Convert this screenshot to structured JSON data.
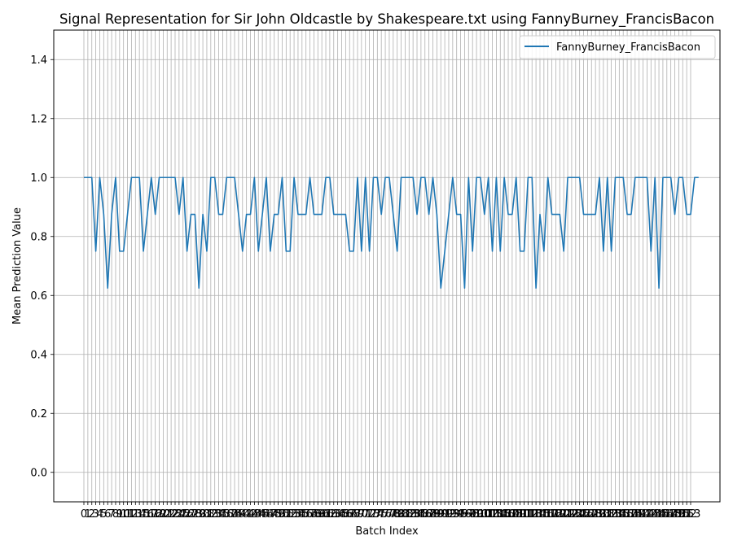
{
  "chart_data": {
    "type": "line",
    "title": "Signal Representation for Sir John Oldcastle by Shakespeare.txt using FannyBurney_FrancisBacon",
    "xlabel": "Batch Index",
    "ylabel": "Mean Prediction Value",
    "ylim": [
      -0.1,
      1.5
    ],
    "yticks": [
      "0.0",
      "0.2",
      "0.4",
      "0.6",
      "0.8",
      "1.0",
      "1.2",
      "1.4"
    ],
    "xtick_count": 154,
    "grid": true,
    "legend_position": "upper-right",
    "series": [
      {
        "name": "FannyBurney_FrancisBacon",
        "color": "#1f77b4",
        "values": [
          1,
          1,
          1,
          0.75,
          1,
          0.875,
          0.625,
          0.875,
          1,
          0.75,
          0.75,
          0.875,
          1,
          1,
          1,
          0.75,
          0.875,
          1,
          0.875,
          1,
          1,
          1,
          1,
          1,
          0.875,
          1,
          0.75,
          0.875,
          0.875,
          0.625,
          0.875,
          0.75,
          1,
          1,
          0.875,
          0.875,
          1,
          1,
          1,
          0.875,
          0.75,
          0.875,
          0.875,
          1,
          0.75,
          0.875,
          1,
          0.75,
          0.875,
          0.875,
          1,
          0.75,
          0.75,
          1,
          0.875,
          0.875,
          0.875,
          1,
          0.875,
          0.875,
          0.875,
          1,
          1,
          0.875,
          0.875,
          0.875,
          0.875,
          0.75,
          0.75,
          1,
          0.75,
          1,
          0.75,
          1,
          1,
          0.875,
          1,
          1,
          0.875,
          0.75,
          1,
          1,
          1,
          1,
          0.875,
          1,
          1,
          0.875,
          1,
          0.875,
          0.625,
          0.75,
          0.875,
          1,
          0.875,
          0.875,
          0.625,
          1,
          0.75,
          1,
          1,
          0.875,
          1,
          0.75,
          1,
          0.75,
          1,
          0.875,
          0.875,
          1,
          0.75,
          0.75,
          1,
          1,
          0.625,
          0.875,
          0.75,
          1,
          0.875,
          0.875,
          0.875,
          0.75,
          1,
          1,
          1,
          1,
          0.875,
          0.875,
          0.875,
          0.875,
          1,
          0.75,
          1,
          0.75,
          1,
          1,
          1,
          0.875,
          0.875,
          1,
          1,
          1,
          1,
          0.75,
          1,
          0.625,
          1,
          1,
          1,
          0.875,
          1,
          1,
          0.875,
          0.875,
          1,
          1
        ]
      }
    ]
  }
}
